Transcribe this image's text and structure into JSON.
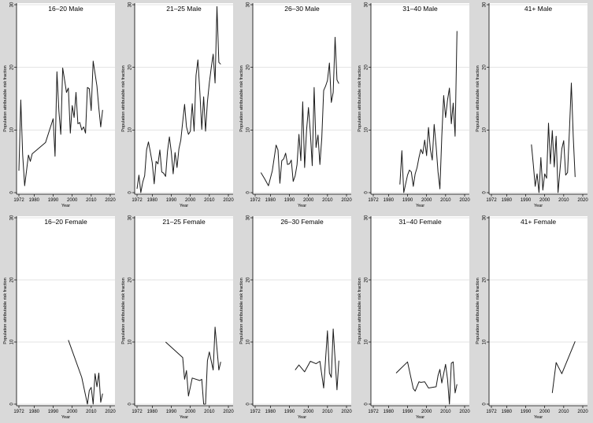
{
  "chart_data": {
    "type": "line",
    "layout": {
      "rows": 2,
      "cols": 5
    },
    "shared": {
      "xlabel": "Year",
      "ylabel": "Population attributable risk fraction",
      "xticks": [
        1972,
        1980,
        1990,
        2000,
        2010,
        2020
      ],
      "yticks": [
        0,
        10,
        20,
        30
      ],
      "xlim": [
        1972,
        2020
      ],
      "ylim": [
        0,
        30
      ],
      "grid": "horizontal",
      "colors": {
        "background": "#d9d9d9",
        "plot": "#ffffff",
        "grid": "#e3e3e3",
        "line": "#1a1a1a"
      }
    },
    "panels": [
      {
        "title": "16–20 Male",
        "points": [
          [
            1972,
            3.5
          ],
          [
            1973,
            14.8
          ],
          [
            1974,
            6
          ],
          [
            1975,
            1.1
          ],
          [
            1976,
            3.5
          ],
          [
            1977,
            6
          ],
          [
            1978,
            5
          ],
          [
            1979,
            6.2
          ],
          [
            1986,
            8
          ],
          [
            1990,
            11.8
          ],
          [
            1991,
            5.8
          ],
          [
            1992,
            19.3
          ],
          [
            1993,
            13
          ],
          [
            1994,
            9.3
          ],
          [
            1995,
            19.9
          ],
          [
            1996,
            18
          ],
          [
            1997,
            16
          ],
          [
            1998,
            16.7
          ],
          [
            1999,
            9.5
          ],
          [
            2000,
            13.9
          ],
          [
            2001,
            12
          ],
          [
            2002,
            16
          ],
          [
            2003,
            11
          ],
          [
            2004,
            11.2
          ],
          [
            2005,
            10
          ],
          [
            2006,
            10.5
          ],
          [
            2007,
            9.5
          ],
          [
            2008,
            16.8
          ],
          [
            2009,
            16.6
          ],
          [
            2010,
            13.1
          ],
          [
            2011,
            21
          ],
          [
            2012,
            19
          ],
          [
            2013,
            17
          ],
          [
            2014,
            13.5
          ],
          [
            2015,
            10.5
          ],
          [
            2016,
            13.2
          ]
        ]
      },
      {
        "title": "21–25 Male",
        "points": [
          [
            1972,
            0.6
          ],
          [
            1973,
            2.8
          ],
          [
            1974,
            0
          ],
          [
            1975,
            1.7
          ],
          [
            1976,
            2.7
          ],
          [
            1977,
            6.8
          ],
          [
            1978,
            8.1
          ],
          [
            1979,
            6.5
          ],
          [
            1980,
            4.8
          ],
          [
            1981,
            1.4
          ],
          [
            1982,
            5
          ],
          [
            1983,
            4.6
          ],
          [
            1984,
            6.8
          ],
          [
            1985,
            3.3
          ],
          [
            1986,
            3.1
          ],
          [
            1987,
            2.6
          ],
          [
            1988,
            6.6
          ],
          [
            1989,
            8.9
          ],
          [
            1990,
            6.5
          ],
          [
            1991,
            3
          ],
          [
            1992,
            6.4
          ],
          [
            1993,
            4
          ],
          [
            1994,
            7
          ],
          [
            1995,
            8.4
          ],
          [
            1996,
            11.3
          ],
          [
            1997,
            14.1
          ],
          [
            1998,
            10.5
          ],
          [
            1999,
            9.3
          ],
          [
            2000,
            9.8
          ],
          [
            2001,
            14.2
          ],
          [
            2002,
            9.8
          ],
          [
            2003,
            18.7
          ],
          [
            2004,
            21.2
          ],
          [
            2005,
            16
          ],
          [
            2006,
            10.1
          ],
          [
            2007,
            15.3
          ],
          [
            2008,
            9.8
          ],
          [
            2009,
            14.5
          ],
          [
            2010,
            17.5
          ],
          [
            2011,
            20
          ],
          [
            2012,
            22.1
          ],
          [
            2013,
            17.5
          ],
          [
            2014,
            29.7
          ],
          [
            2015,
            20.8
          ],
          [
            2016,
            20.5
          ]
        ]
      },
      {
        "title": "26–30 Male",
        "points": [
          [
            1975,
            3.2
          ],
          [
            1977,
            2.2
          ],
          [
            1979,
            1.1
          ],
          [
            1981,
            3.5
          ],
          [
            1983,
            7.6
          ],
          [
            1984,
            6.8
          ],
          [
            1985,
            1.5
          ],
          [
            1986,
            5.1
          ],
          [
            1987,
            5.4
          ],
          [
            1988,
            6.3
          ],
          [
            1989,
            4.5
          ],
          [
            1990,
            4.6
          ],
          [
            1991,
            5.2
          ],
          [
            1992,
            1.8
          ],
          [
            1993,
            2.7
          ],
          [
            1994,
            4.5
          ],
          [
            1995,
            9.3
          ],
          [
            1996,
            5.1
          ],
          [
            1997,
            14.5
          ],
          [
            1998,
            4
          ],
          [
            1999,
            10
          ],
          [
            2000,
            13.6
          ],
          [
            2001,
            9.5
          ],
          [
            2002,
            4.3
          ],
          [
            2003,
            16.8
          ],
          [
            2004,
            7.2
          ],
          [
            2005,
            9.2
          ],
          [
            2006,
            4.5
          ],
          [
            2007,
            8.7
          ],
          [
            2008,
            16.3
          ],
          [
            2009,
            17
          ],
          [
            2010,
            17.9
          ],
          [
            2011,
            20.7
          ],
          [
            2012,
            14.4
          ],
          [
            2013,
            16
          ],
          [
            2014,
            24.8
          ],
          [
            2015,
            18
          ],
          [
            2016,
            17.4
          ]
        ]
      },
      {
        "title": "31–40 Male",
        "points": [
          [
            1986,
            1.3
          ],
          [
            1987,
            6.7
          ],
          [
            1988,
            0
          ],
          [
            1989,
            1.4
          ],
          [
            1990,
            2.8
          ],
          [
            1991,
            3.6
          ],
          [
            1992,
            3.3
          ],
          [
            1993,
            1
          ],
          [
            1994,
            3
          ],
          [
            1995,
            4
          ],
          [
            1996,
            5.6
          ],
          [
            1997,
            6.9
          ],
          [
            1998,
            6.2
          ],
          [
            1999,
            8.4
          ],
          [
            2000,
            5.9
          ],
          [
            2001,
            10.4
          ],
          [
            2002,
            6.9
          ],
          [
            2003,
            5.2
          ],
          [
            2004,
            10.9
          ],
          [
            2005,
            7.4
          ],
          [
            2006,
            3.3
          ],
          [
            2007,
            0.6
          ],
          [
            2008,
            9
          ],
          [
            2009,
            15.5
          ],
          [
            2010,
            12
          ],
          [
            2011,
            14.8
          ],
          [
            2012,
            16.7
          ],
          [
            2013,
            11
          ],
          [
            2014,
            14.3
          ],
          [
            2015,
            9
          ],
          [
            2016,
            25.8
          ]
        ]
      },
      {
        "title": "41+ Male",
        "points": [
          [
            1993,
            7.7
          ],
          [
            1994,
            4.5
          ],
          [
            1995,
            1
          ],
          [
            1996,
            3
          ],
          [
            1997,
            0
          ],
          [
            1998,
            5.6
          ],
          [
            1999,
            0.4
          ],
          [
            2000,
            3
          ],
          [
            2001,
            2.3
          ],
          [
            2002,
            11.1
          ],
          [
            2003,
            4.6
          ],
          [
            2004,
            9.9
          ],
          [
            2005,
            4.1
          ],
          [
            2006,
            9
          ],
          [
            2007,
            0
          ],
          [
            2008,
            3.5
          ],
          [
            2009,
            7
          ],
          [
            2010,
            8.3
          ],
          [
            2011,
            2.8
          ],
          [
            2012,
            3.2
          ],
          [
            2013,
            10
          ],
          [
            2014,
            17.5
          ],
          [
            2015,
            9
          ],
          [
            2016,
            2.5
          ]
        ]
      },
      {
        "title": "16–20 Female",
        "points": [
          [
            1998,
            10.3
          ],
          [
            2005,
            4.3
          ],
          [
            2008,
            0
          ],
          [
            2009,
            2.2
          ],
          [
            2010,
            2.7
          ],
          [
            2011,
            0
          ],
          [
            2012,
            4.9
          ],
          [
            2013,
            2.8
          ],
          [
            2014,
            5
          ],
          [
            2015,
            0.3
          ],
          [
            2016,
            1.7
          ]
        ]
      },
      {
        "title": "21–25 Female",
        "points": [
          [
            1987,
            10
          ],
          [
            1996,
            7.5
          ],
          [
            1997,
            4
          ],
          [
            1998,
            5.4
          ],
          [
            1999,
            1.3
          ],
          [
            2001,
            4.2
          ],
          [
            2005,
            3.8
          ],
          [
            2006,
            4
          ],
          [
            2007,
            0
          ],
          [
            2008,
            0
          ],
          [
            2009,
            7
          ],
          [
            2010,
            8.4
          ],
          [
            2012,
            5.5
          ],
          [
            2013,
            12.4
          ],
          [
            2015,
            5.5
          ],
          [
            2016,
            6.8
          ]
        ]
      },
      {
        "title": "26–30 Female",
        "points": [
          [
            1993,
            5.5
          ],
          [
            1995,
            6.3
          ],
          [
            1998,
            5.2
          ],
          [
            2001,
            6.9
          ],
          [
            2004,
            6.5
          ],
          [
            2006,
            6.9
          ],
          [
            2008,
            2.6
          ],
          [
            2010,
            11.8
          ],
          [
            2011,
            5
          ],
          [
            2012,
            4.3
          ],
          [
            2013,
            12.1
          ],
          [
            2015,
            2.3
          ],
          [
            2016,
            7
          ]
        ]
      },
      {
        "title": "31–40 Female",
        "points": [
          [
            1984,
            5
          ],
          [
            1990,
            6.8
          ],
          [
            1993,
            2.5
          ],
          [
            1994,
            2.1
          ],
          [
            1996,
            3.6
          ],
          [
            1997,
            3.5
          ],
          [
            1999,
            3.6
          ],
          [
            2001,
            2.6
          ],
          [
            2005,
            2.8
          ],
          [
            2006,
            4.6
          ],
          [
            2007,
            5.6
          ],
          [
            2008,
            3.4
          ],
          [
            2010,
            6.4
          ],
          [
            2011,
            4
          ],
          [
            2012,
            0
          ],
          [
            2013,
            6.6
          ],
          [
            2014,
            6.8
          ],
          [
            2015,
            1.8
          ],
          [
            2016,
            3.2
          ]
        ]
      },
      {
        "title": "41+ Female",
        "points": [
          [
            2004,
            1.8
          ],
          [
            2006,
            6.7
          ],
          [
            2009,
            4.9
          ],
          [
            2016,
            10.1
          ]
        ]
      }
    ]
  }
}
